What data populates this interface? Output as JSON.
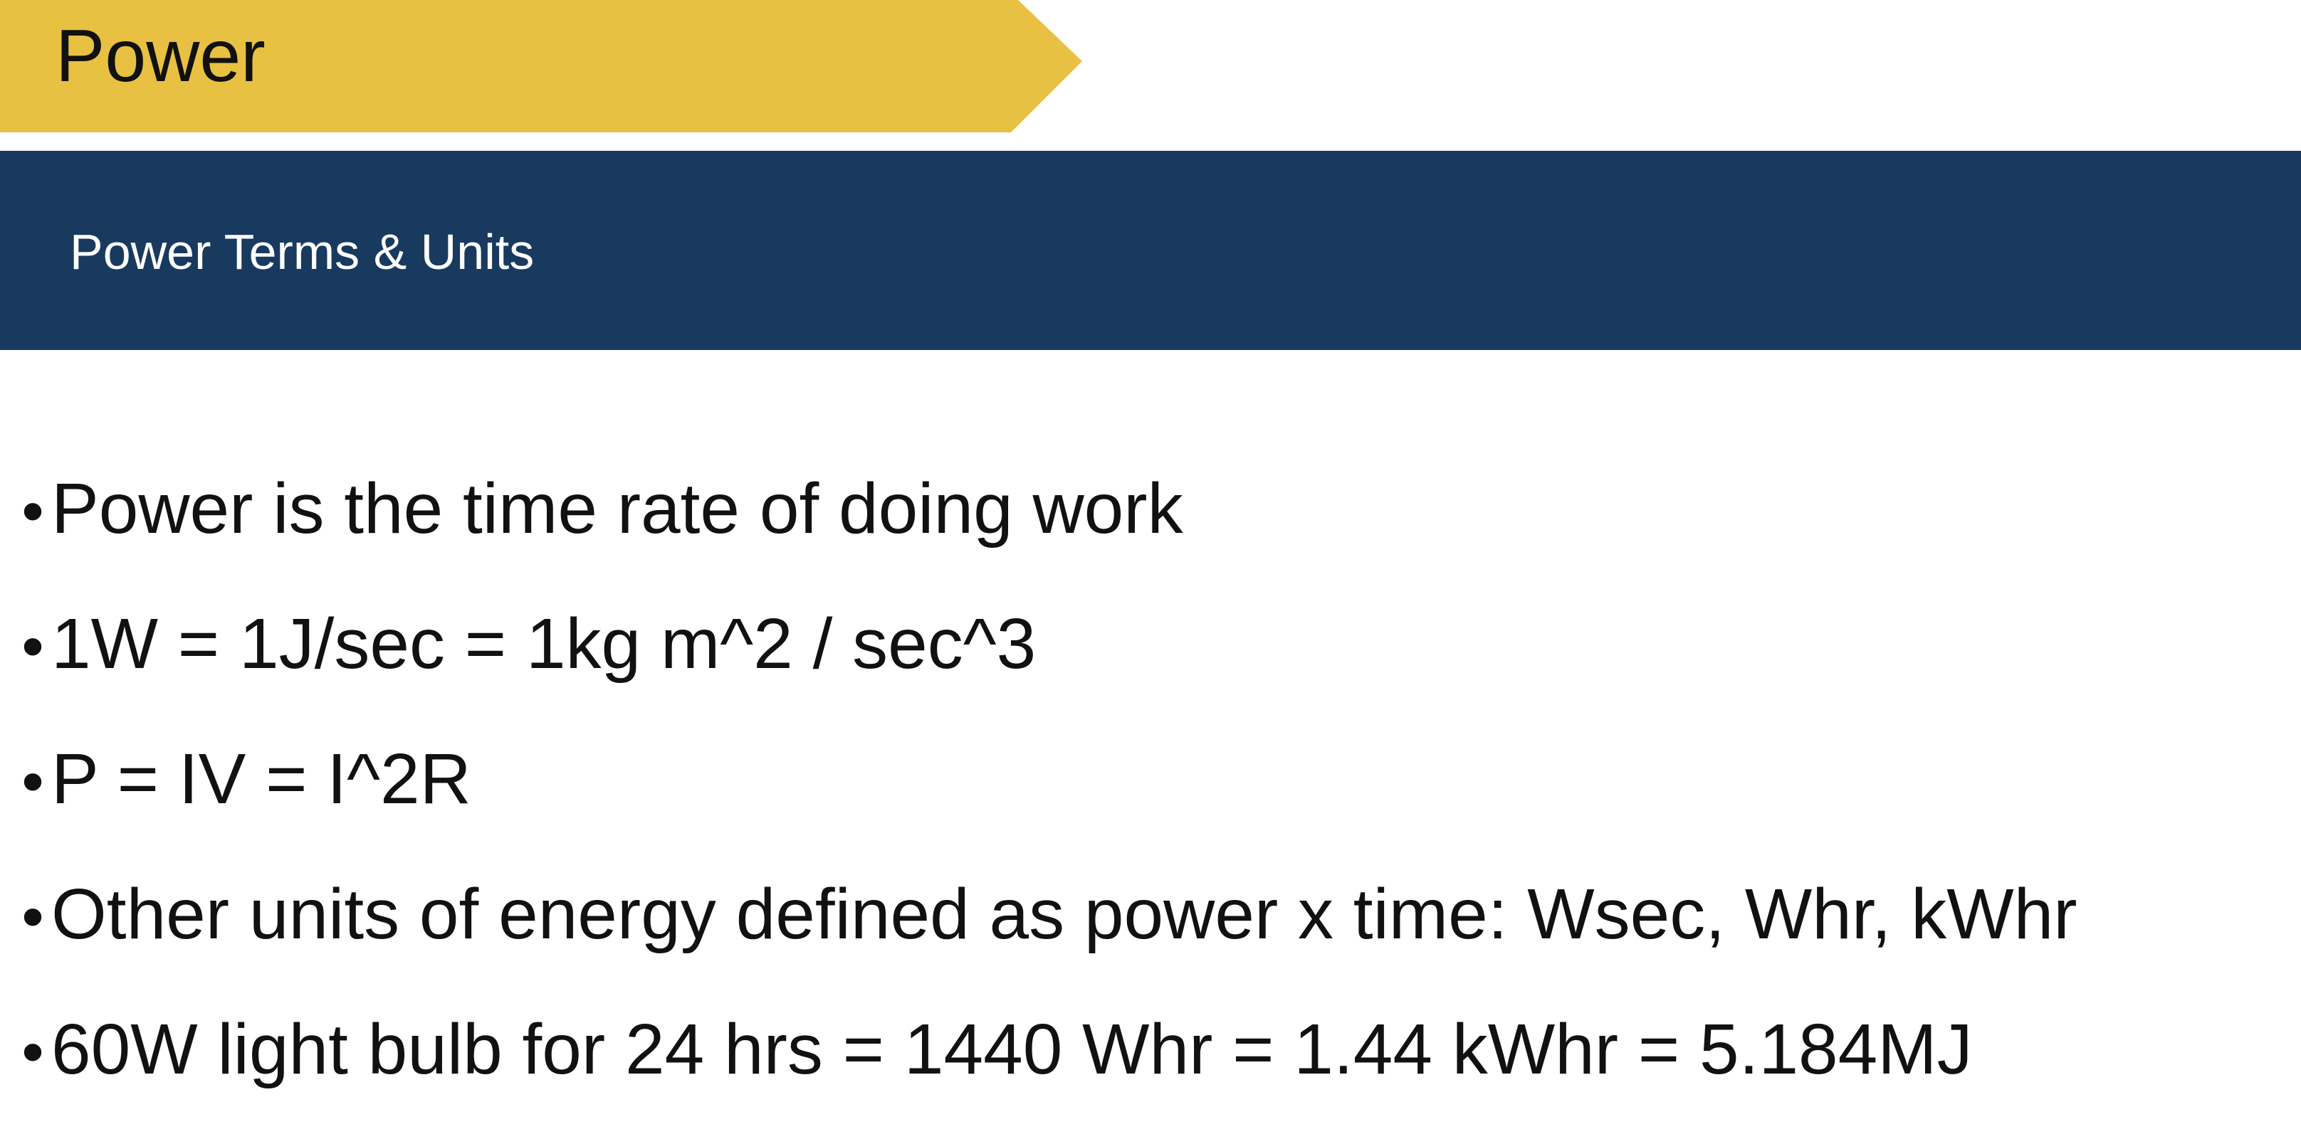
{
  "slide": {
    "title": "Power",
    "subtitle": "Power Terms & Units",
    "bullet_marker": "•",
    "bullets": [
      "Power is the time rate of doing work",
      "1W = 1J/sec = 1kg m^2 / sec^3",
      "P = IV = I^2R",
      "Other units of energy defined as power x time: Wsec, Whr, kWhr",
      "60W light bulb for 24 hrs = 1440 Whr = 1.44 kWhr = 5.184MJ"
    ]
  },
  "colors": {
    "title_banner": "#e8c142",
    "subtitle_bar": "#193a5f",
    "text": "#111111",
    "subtitle_text": "#ffffff"
  }
}
